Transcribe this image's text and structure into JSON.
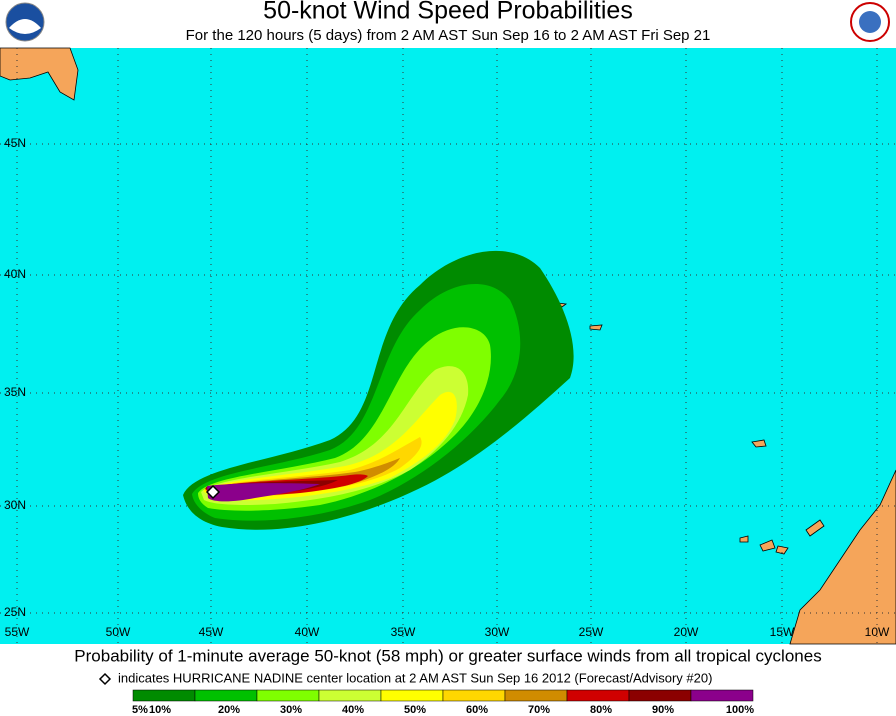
{
  "header": {
    "title": "50-knot Wind Speed Probabilities",
    "subtitle": "For the 120 hours (5 days) from 2 AM AST Sun Sep 16 to 2 AM AST Fri Sep 21"
  },
  "map": {
    "lat_labels": [
      "45N",
      "40N",
      "35N",
      "30N",
      "25N"
    ],
    "lon_labels": [
      "55W",
      "50W",
      "45W",
      "40W",
      "35W",
      "30W",
      "25W",
      "20W",
      "15W",
      "10W"
    ]
  },
  "footer": {
    "caption": "Probability of 1-minute average 50-knot (58 mph) or greater surface winds from all tropical cyclones",
    "note": "indicates HURRICANE NADINE center location at 2 AM AST Sun Sep 16 2012 (Forecast/Advisory #20)"
  },
  "legend": {
    "colors": [
      "#008b00",
      "#00c000",
      "#7fff00",
      "#ccff33",
      "#ffff00",
      "#ffd700",
      "#d08c00",
      "#d00000",
      "#8b0000",
      "#8b008b"
    ],
    "labels": [
      "5%",
      "10%",
      "20%",
      "30%",
      "40%",
      "50%",
      "60%",
      "70%",
      "80%",
      "90%",
      "100%"
    ]
  }
}
